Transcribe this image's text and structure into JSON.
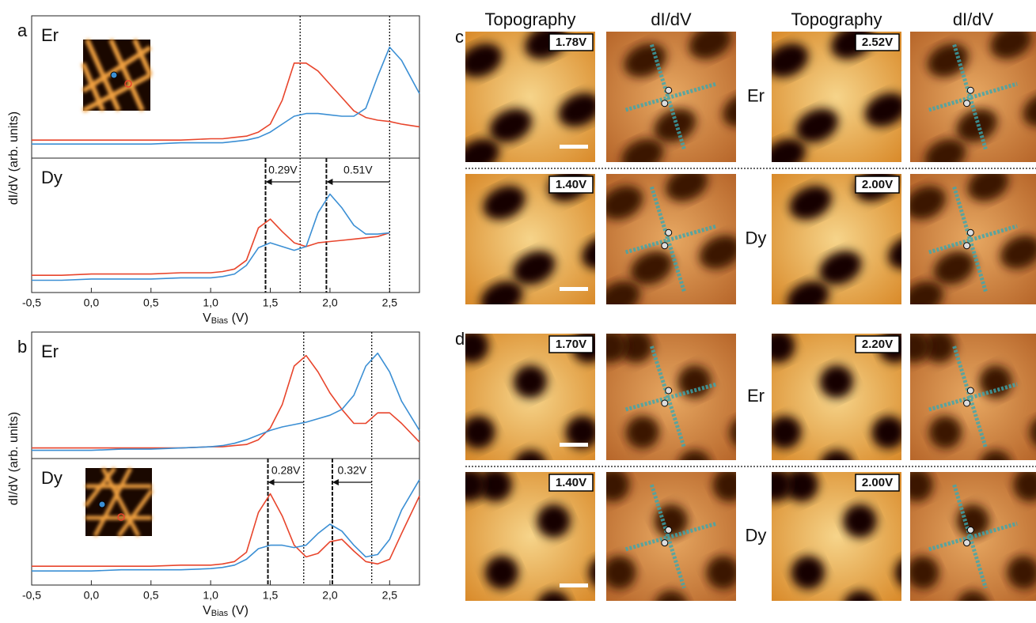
{
  "chart_data": [
    {
      "type": "line",
      "panel": "a",
      "label": "Er",
      "ylabel": "dI/dV (arb. units)",
      "xlim": [
        -0.5,
        2.75
      ],
      "ylim": [
        0,
        1
      ],
      "x": [
        -0.5,
        -0.25,
        0,
        0.25,
        0.5,
        0.75,
        1.0,
        1.1,
        1.2,
        1.3,
        1.4,
        1.5,
        1.6,
        1.7,
        1.8,
        1.9,
        2.0,
        2.1,
        2.2,
        2.3,
        2.4,
        2.5,
        2.6,
        2.75
      ],
      "series": [
        {
          "color": "#e8452c",
          "values": [
            0.1,
            0.1,
            0.1,
            0.1,
            0.1,
            0.1,
            0.11,
            0.11,
            0.12,
            0.13,
            0.16,
            0.22,
            0.4,
            0.68,
            0.68,
            0.62,
            0.52,
            0.42,
            0.32,
            0.27,
            0.25,
            0.24,
            0.22,
            0.2
          ]
        },
        {
          "color": "#3b8fd4",
          "values": [
            0.07,
            0.07,
            0.07,
            0.07,
            0.07,
            0.08,
            0.08,
            0.08,
            0.09,
            0.1,
            0.12,
            0.16,
            0.22,
            0.28,
            0.3,
            0.3,
            0.29,
            0.28,
            0.28,
            0.34,
            0.58,
            0.8,
            0.7,
            0.45
          ]
        }
      ],
      "vlines": [
        {
          "value": 1.75,
          "style": "dotted"
        },
        {
          "value": 2.5,
          "style": "dotted"
        }
      ]
    },
    {
      "type": "line",
      "label": "Dy",
      "xlim": [
        -0.5,
        2.75
      ],
      "ylim": [
        0,
        1
      ],
      "xlabel": [
        "V",
        "Bias",
        " (V)"
      ],
      "xticks": [
        {
          "value": -0.5,
          "label": "-0,5"
        },
        {
          "value": 0,
          "label": "0,0"
        },
        {
          "value": 0.5,
          "label": "0,5"
        },
        {
          "value": 1,
          "label": "1,0"
        },
        {
          "value": 1.5,
          "label": "1,5"
        },
        {
          "value": 2,
          "label": "2,0"
        },
        {
          "value": 2.5,
          "label": "2,5"
        }
      ],
      "x": [
        -0.5,
        -0.25,
        0,
        0.25,
        0.5,
        0.75,
        1.0,
        1.1,
        1.2,
        1.3,
        1.4,
        1.5,
        1.6,
        1.7,
        1.8,
        1.9,
        2.0,
        2.1,
        2.2,
        2.3,
        2.4,
        2.5,
        2.6,
        2.75
      ],
      "series": [
        {
          "color": "#e8452c",
          "values": [
            0.1,
            0.1,
            0.11,
            0.11,
            0.11,
            0.12,
            0.12,
            0.13,
            0.15,
            0.22,
            0.48,
            0.55,
            0.45,
            0.36,
            0.33,
            0.36,
            0.37,
            0.38,
            0.39,
            0.4,
            0.41,
            0.44,
            null,
            null
          ]
        },
        {
          "color": "#3b8fd4",
          "values": [
            0.06,
            0.06,
            0.07,
            0.07,
            0.07,
            0.08,
            0.08,
            0.09,
            0.11,
            0.18,
            0.32,
            0.36,
            0.33,
            0.3,
            0.33,
            0.6,
            0.75,
            0.64,
            0.5,
            0.43,
            0.43,
            0.44,
            null,
            null
          ]
        }
      ],
      "vlines": [
        {
          "value": 1.46,
          "style": "dashed"
        },
        {
          "value": 1.97,
          "style": "dashed"
        },
        {
          "value": 1.75,
          "style": "dotted"
        },
        {
          "value": 2.5,
          "style": "dotted"
        }
      ],
      "annotations": [
        {
          "text": "0.29V",
          "from": 1.75,
          "to": 1.46
        },
        {
          "text": "0.51V",
          "from": 2.5,
          "to": 1.97
        }
      ]
    },
    {
      "type": "line",
      "panel": "b",
      "label": "Er",
      "ylabel": "dI/dV (arb. units)",
      "xlim": [
        -0.5,
        2.75
      ],
      "ylim": [
        0,
        1
      ],
      "x": [
        -0.5,
        -0.25,
        0,
        0.25,
        0.5,
        0.75,
        1.0,
        1.1,
        1.2,
        1.3,
        1.4,
        1.5,
        1.6,
        1.7,
        1.8,
        1.9,
        2.0,
        2.1,
        2.2,
        2.3,
        2.4,
        2.5,
        2.6,
        2.75
      ],
      "series": [
        {
          "color": "#e8452c",
          "values": [
            0.05,
            0.05,
            0.05,
            0.05,
            0.05,
            0.05,
            0.06,
            0.06,
            0.07,
            0.08,
            0.12,
            0.22,
            0.42,
            0.75,
            0.84,
            0.7,
            0.52,
            0.38,
            0.26,
            0.26,
            0.35,
            0.35,
            0.26,
            0.1
          ]
        },
        {
          "color": "#3b8fd4",
          "values": [
            0.03,
            0.03,
            0.03,
            0.04,
            0.04,
            0.05,
            0.06,
            0.07,
            0.09,
            0.12,
            0.16,
            0.2,
            0.23,
            0.25,
            0.27,
            0.3,
            0.33,
            0.38,
            0.5,
            0.75,
            0.86,
            0.7,
            0.45,
            0.2
          ]
        }
      ],
      "vlines": [
        {
          "value": 1.78,
          "style": "dotted"
        },
        {
          "value": 2.35,
          "style": "dotted"
        }
      ]
    },
    {
      "type": "line",
      "label": "Dy",
      "xlim": [
        -0.5,
        2.75
      ],
      "ylim": [
        0,
        1
      ],
      "xlabel": [
        "V",
        "Bias",
        " (V)"
      ],
      "xticks": [
        {
          "value": -0.5,
          "label": "-0,5"
        },
        {
          "value": 0,
          "label": "0,0"
        },
        {
          "value": 0.5,
          "label": "0,5"
        },
        {
          "value": 1,
          "label": "1,0"
        },
        {
          "value": 1.5,
          "label": "1,5"
        },
        {
          "value": 2,
          "label": "2,0"
        },
        {
          "value": 2.5,
          "label": "2,5"
        }
      ],
      "x": [
        -0.5,
        -0.25,
        0,
        0.25,
        0.5,
        0.75,
        1.0,
        1.1,
        1.2,
        1.3,
        1.4,
        1.5,
        1.6,
        1.7,
        1.8,
        1.9,
        2.0,
        2.1,
        2.2,
        2.3,
        2.4,
        2.5,
        2.6,
        2.75
      ],
      "series": [
        {
          "color": "#e8452c",
          "values": [
            0.12,
            0.12,
            0.12,
            0.12,
            0.12,
            0.13,
            0.13,
            0.14,
            0.16,
            0.24,
            0.58,
            0.74,
            0.55,
            0.3,
            0.2,
            0.23,
            0.33,
            0.35,
            0.25,
            0.16,
            0.14,
            0.18,
            0.4,
            0.72
          ]
        },
        {
          "color": "#3b8fd4",
          "values": [
            0.08,
            0.08,
            0.08,
            0.09,
            0.09,
            0.09,
            0.1,
            0.11,
            0.13,
            0.18,
            0.27,
            0.3,
            0.3,
            0.28,
            0.3,
            0.4,
            0.48,
            0.42,
            0.3,
            0.2,
            0.22,
            0.35,
            0.6,
            0.86
          ]
        }
      ],
      "vlines": [
        {
          "value": 1.48,
          "style": "dashed"
        },
        {
          "value": 2.02,
          "style": "dashed"
        },
        {
          "value": 1.78,
          "style": "dotted"
        },
        {
          "value": 2.35,
          "style": "dotted"
        }
      ],
      "annotations": [
        {
          "text": "0.28V",
          "from": 1.78,
          "to": 1.48
        },
        {
          "text": "0.32V",
          "from": 2.35,
          "to": 2.02
        }
      ]
    }
  ],
  "images": {
    "columns": [
      "Topography",
      "dI/dV",
      "Topography",
      "dI/dV"
    ],
    "panels": [
      {
        "label": "c",
        "rows": [
          {
            "element": "Er",
            "voltages": [
              "1.78V",
              "2.52V"
            ]
          },
          {
            "element": "Dy",
            "voltages": [
              "1.40V",
              "2.00V"
            ]
          }
        ]
      },
      {
        "label": "d",
        "rows": [
          {
            "element": "Er",
            "voltages": [
              "1.70V",
              "2.20V"
            ]
          },
          {
            "element": "Dy",
            "voltages": [
              "1.40V",
              "2.00V"
            ]
          }
        ]
      }
    ]
  }
}
